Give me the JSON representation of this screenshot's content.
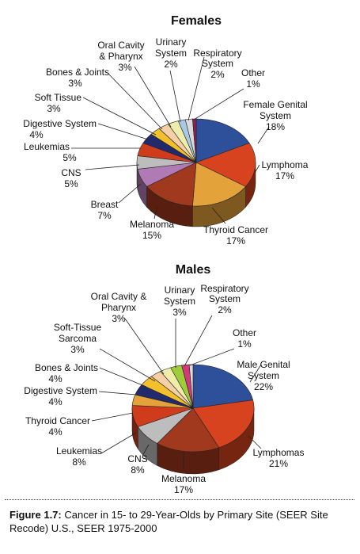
{
  "chart_data": [
    {
      "type": "pie",
      "title": "Females",
      "slices": [
        {
          "label": [
            "Female Genital",
            "System"
          ],
          "pct": "18%",
          "value": 18,
          "color": "#2e4f9a"
        },
        {
          "label": [
            "Lymphoma"
          ],
          "pct": "17%",
          "value": 17,
          "color": "#d7431f"
        },
        {
          "label": [
            "Thyroid Cancer"
          ],
          "pct": "17%",
          "value": 17,
          "color": "#e3a23a"
        },
        {
          "label": [
            "Melanoma"
          ],
          "pct": "15%",
          "value": 15,
          "color": "#a0391d"
        },
        {
          "label": [
            "Breast"
          ],
          "pct": "7%",
          "value": 7,
          "color": "#b07bb4"
        },
        {
          "label": [
            "CNS"
          ],
          "pct": "5%",
          "value": 5,
          "color": "#bdbdbd"
        },
        {
          "label": [
            "Leukemias"
          ],
          "pct": "5%",
          "value": 5,
          "color": "#cf3c1c"
        },
        {
          "label": [
            "Digestive System"
          ],
          "pct": "4%",
          "value": 4,
          "color": "#222a6e"
        },
        {
          "label": [
            "Soft Tissue"
          ],
          "pct": "3%",
          "value": 3,
          "color": "#f2c02c"
        },
        {
          "label": [
            "Bones & Joints"
          ],
          "pct": "3%",
          "value": 3,
          "color": "#f5cfa5"
        },
        {
          "label": [
            "Oral Cavity",
            "& Pharynx"
          ],
          "pct": "3%",
          "value": 3,
          "color": "#eeeeaa"
        },
        {
          "label": [
            "Urinary",
            "System"
          ],
          "pct": "2%",
          "value": 2,
          "color": "#a8c8e4"
        },
        {
          "label": [
            "Respiratory",
            "System"
          ],
          "pct": "2%",
          "value": 2,
          "color": "#dadada"
        },
        {
          "label": [
            "Other"
          ],
          "pct": "1%",
          "value": 1,
          "color": "#8a2258"
        }
      ]
    },
    {
      "type": "pie",
      "title": "Males",
      "slices": [
        {
          "label": [
            "Male Genital",
            "System"
          ],
          "pct": "22%",
          "value": 22,
          "color": "#2e4f9a"
        },
        {
          "label": [
            "Lymphomas"
          ],
          "pct": "21%",
          "value": 21,
          "color": "#d7431f"
        },
        {
          "label": [
            "Melanoma"
          ],
          "pct": "17%",
          "value": 17,
          "color": "#a0391d"
        },
        {
          "label": [
            "CNS"
          ],
          "pct": "8%",
          "value": 8,
          "color": "#bdbdbd"
        },
        {
          "label": [
            "Leukemias"
          ],
          "pct": "8%",
          "value": 8,
          "color": "#cf3c1c"
        },
        {
          "label": [
            "Thyroid Cancer"
          ],
          "pct": "4%",
          "value": 4,
          "color": "#e3a23a"
        },
        {
          "label": [
            "Digestive System"
          ],
          "pct": "4%",
          "value": 4,
          "color": "#222a6e"
        },
        {
          "label": [
            "Bones & Joints"
          ],
          "pct": "4%",
          "value": 4,
          "color": "#f2c02c"
        },
        {
          "label": [
            "Soft-Tissue",
            "Sarcoma"
          ],
          "pct": "3%",
          "value": 3,
          "color": "#f5cfa5"
        },
        {
          "label": [
            "Oral Cavity &",
            "Pharynx"
          ],
          "pct": "3%",
          "value": 3,
          "color": "#eeeeaa"
        },
        {
          "label": [
            "Urinary",
            "System"
          ],
          "pct": "3%",
          "value": 3,
          "color": "#9ecc3a"
        },
        {
          "label": [
            "Respiratory",
            "System"
          ],
          "pct": "2%",
          "value": 2,
          "color": "#d23a78"
        },
        {
          "label": [
            "Other"
          ],
          "pct": "1%",
          "value": 1,
          "color": "#dadada"
        }
      ]
    }
  ],
  "caption": {
    "prefix": "Figure 1.7:",
    "text": " Cancer in 15- to 29-Year-Olds by Primary Site (SEER Site Recode) U.S., SEER 1975-2000"
  }
}
